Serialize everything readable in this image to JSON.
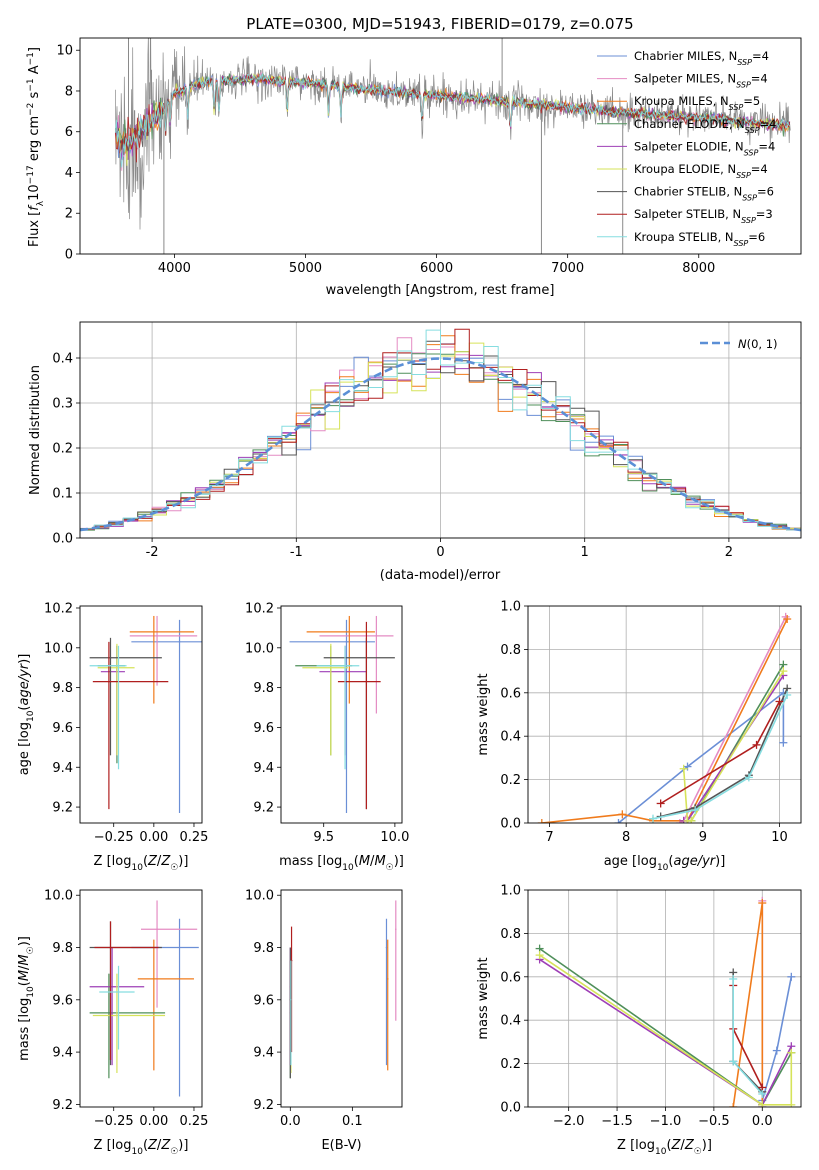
{
  "figure": {
    "title": "PLATE=0300, MJD=51943, FIBERID=0179, z=0.075"
  },
  "colors": {
    "Chabrier MILES": "#6b8fd6",
    "Salpeter MILES": "#e48bc3",
    "Kroupa MILES": "#f07b1c",
    "Chabrier ELODIE": "#4f8f5a",
    "Salpeter ELODIE": "#9e3fb6",
    "Kroupa ELODIE": "#d6e35a",
    "Chabrier STELIB": "#555555",
    "Salpeter STELIB": "#b01f1f",
    "Kroupa STELIB": "#86dde0",
    "data": "#8a8a8a",
    "normal": "#5b8fd6"
  },
  "chart_data": [
    {
      "id": "spectrum",
      "type": "line",
      "title": "PLATE=0300, MJD=51943, FIBERID=0179, z=0.075",
      "xlabel": "wavelength [Angstrom, rest frame]",
      "ylabel": "Flux [f_λ 10^-17 erg cm^-2 s^-1 A^-1]",
      "xlim": [
        3280,
        8780
      ],
      "ylim": [
        0,
        10.6
      ],
      "xticks": [
        4000,
        5000,
        6000,
        7000,
        8000
      ],
      "yticks": [
        0,
        2,
        4,
        6,
        8,
        10
      ],
      "grid": false,
      "legend_position": "upper right",
      "legend": [
        {
          "prefix": "Chabrier MILES, N",
          "sub": "SSP",
          "suffix": "=4",
          "series": "Chabrier MILES"
        },
        {
          "prefix": "Salpeter MILES, N",
          "sub": "SSP",
          "suffix": "=4",
          "series": "Salpeter MILES"
        },
        {
          "prefix": "Kroupa MILES, N",
          "sub": "SSP",
          "suffix": "=5",
          "series": "Kroupa MILES"
        },
        {
          "prefix": "Chabrier ELODIE, N",
          "sub": "SSP",
          "suffix": "=4",
          "series": "Chabrier ELODIE"
        },
        {
          "prefix": "Salpeter ELODIE, N",
          "sub": "SSP",
          "suffix": "=4",
          "series": "Salpeter ELODIE"
        },
        {
          "prefix": "Kroupa ELODIE, N",
          "sub": "SSP",
          "suffix": "=4",
          "series": "Kroupa ELODIE"
        },
        {
          "prefix": "Chabrier STELIB, N",
          "sub": "SSP",
          "suffix": "=6",
          "series": "Chabrier STELIB"
        },
        {
          "prefix": "Salpeter STELIB, N",
          "sub": "SSP",
          "suffix": "=3",
          "series": "Salpeter STELIB"
        },
        {
          "prefix": "Kroupa STELIB, N",
          "sub": "SSP",
          "suffix": "=6",
          "series": "Kroupa STELIB"
        }
      ],
      "continuum": {
        "x": [
          3550,
          3600,
          3700,
          3800,
          3900,
          4000,
          4200,
          4400,
          4600,
          4800,
          5000,
          5300,
          5600,
          6000,
          6500,
          7000,
          7500,
          8000,
          8500,
          8750
        ],
        "y": [
          6.0,
          5.3,
          5.6,
          6.4,
          7.1,
          7.9,
          8.4,
          8.5,
          8.6,
          8.5,
          8.4,
          8.2,
          8.0,
          7.8,
          7.5,
          7.2,
          6.9,
          6.7,
          6.4,
          6.3
        ]
      },
      "absorption_lines": [
        3934,
        3969,
        4102,
        4304,
        4341,
        4861,
        5175,
        5270,
        5890,
        6563
      ],
      "data_range": [
        3550,
        8700
      ]
    },
    {
      "id": "residuals",
      "type": "histogram",
      "xlabel": "(data-model)/error",
      "ylabel": "Normed distribution",
      "xlim": [
        -2.5,
        2.5
      ],
      "ylim": [
        0,
        0.48
      ],
      "xticks": [
        -2,
        -1,
        0,
        1,
        2
      ],
      "yticks": [
        0.0,
        0.1,
        0.2,
        0.3,
        0.4
      ],
      "grid": true,
      "legend_position": "upper right",
      "normal_label": "N(0,1)",
      "bin_width": 0.1
    },
    {
      "id": "age_vs_Z",
      "type": "errorbar",
      "xlabel": "Z [log10(Z/Z☉)]",
      "ylabel": "age [log10(age/yr)]",
      "xlim": [
        -0.46,
        0.3
      ],
      "ylim": [
        9.12,
        10.21
      ],
      "xticks": [
        -0.25,
        0.0,
        0.25
      ],
      "xtick_labels": [
        "−0.25",
        "0.00",
        "0.25"
      ],
      "yticks": [
        9.2,
        9.4,
        9.6,
        9.8,
        10.0,
        10.2
      ],
      "points": [
        {
          "series": "Chabrier MILES",
          "x": 0.16,
          "xerr": [
            0.3,
            0.15
          ],
          "y": 10.03,
          "yerr": [
            0.86,
            0.11
          ]
        },
        {
          "series": "Salpeter MILES",
          "x": 0.02,
          "xerr": [
            0.17,
            0.25
          ],
          "y": 10.06,
          "yerr": [
            0.25,
            0.1
          ]
        },
        {
          "series": "Kroupa MILES",
          "x": 0.0,
          "xerr": [
            0.15,
            0.25
          ],
          "y": 10.08,
          "yerr": [
            0.36,
            0.08
          ]
        },
        {
          "series": "Chabrier ELODIE",
          "x": -0.23,
          "xerr": [
            0.12,
            0.05
          ],
          "y": 9.91,
          "yerr": [
            0.49,
            0.1
          ]
        },
        {
          "series": "Salpeter ELODIE",
          "x": -0.23,
          "xerr": [
            0.1,
            0.05
          ],
          "y": 9.88,
          "yerr": [
            0.42,
            0.13
          ]
        },
        {
          "series": "Kroupa ELODIE",
          "x": -0.23,
          "xerr": [
            0.12,
            0.11
          ],
          "y": 9.9,
          "yerr": [
            0.44,
            0.12
          ]
        },
        {
          "series": "Chabrier STELIB",
          "x": -0.27,
          "xerr": [
            0.13,
            0.32
          ],
          "y": 9.95,
          "yerr": [
            0.49,
            0.1
          ]
        },
        {
          "series": "Salpeter STELIB",
          "x": -0.28,
          "xerr": [
            0.1,
            0.37
          ],
          "y": 9.83,
          "yerr": [
            0.64,
            0.2
          ]
        },
        {
          "series": "Kroupa STELIB",
          "x": -0.22,
          "xerr": [
            0.18,
            0.05
          ],
          "y": 9.91,
          "yerr": [
            0.52,
            0.1
          ]
        }
      ]
    },
    {
      "id": "age_vs_mass",
      "type": "errorbar",
      "xlabel": "mass [log10(M/M☉)]",
      "ylabel": "",
      "xlim": [
        9.2,
        10.05
      ],
      "ylim": [
        9.12,
        10.21
      ],
      "xticks": [
        9.5,
        10.0
      ],
      "xtick_labels": [
        "9.5",
        "10.0"
      ],
      "yticks": [
        9.2,
        9.4,
        9.6,
        9.8,
        10.0,
        10.2
      ],
      "points": [
        {
          "series": "Chabrier MILES",
          "x": 9.66,
          "xerr": [
            0.4,
            0.2
          ],
          "y": 10.03,
          "yerr": [
            0.86,
            0.11
          ]
        },
        {
          "series": "Salpeter MILES",
          "x": 9.87,
          "xerr": [
            0.4,
            0.12
          ],
          "y": 10.06,
          "yerr": [
            0.39,
            0.1
          ]
        },
        {
          "series": "Kroupa MILES",
          "x": 9.68,
          "xerr": [
            0.3,
            0.18
          ],
          "y": 10.08,
          "yerr": [
            0.36,
            0.08
          ]
        },
        {
          "series": "Chabrier ELODIE",
          "x": 9.55,
          "xerr": [
            0.25,
            0.15
          ],
          "y": 9.91,
          "yerr": [
            0.45,
            0.1
          ]
        },
        {
          "series": "Salpeter ELODIE",
          "x": 9.65,
          "xerr": [
            0.18,
            0.15
          ],
          "y": 9.88,
          "yerr": [
            0.42,
            0.13
          ]
        },
        {
          "series": "Kroupa ELODIE",
          "x": 9.55,
          "xerr": [
            0.2,
            0.12
          ],
          "y": 9.9,
          "yerr": [
            0.44,
            0.12
          ]
        },
        {
          "series": "Chabrier STELIB",
          "x": 9.8,
          "xerr": [
            0.3,
            0.2
          ],
          "y": 9.95,
          "yerr": [
            0.76,
            0.1
          ]
        },
        {
          "series": "Salpeter STELIB",
          "x": 9.8,
          "xerr": [
            0.2,
            0.1
          ],
          "y": 9.83,
          "yerr": [
            0.64,
            0.3
          ]
        },
        {
          "series": "Kroupa STELIB",
          "x": 9.65,
          "xerr": [
            0.2,
            0.1
          ],
          "y": 9.91,
          "yerr": [
            0.52,
            0.1
          ]
        }
      ]
    },
    {
      "id": "weight_vs_age",
      "type": "line",
      "xlabel": "age [log10(age/yr)]",
      "ylabel": "mass weight",
      "xlim": [
        6.72,
        10.28
      ],
      "ylim": [
        0,
        1.0
      ],
      "xticks": [
        7,
        8,
        9,
        10
      ],
      "yticks": [
        0.0,
        0.2,
        0.4,
        0.6,
        0.8,
        1.0
      ],
      "grid": true,
      "series": [
        {
          "name": "Chabrier MILES",
          "x": [
            7.9,
            8.8,
            10.05,
            10.05
          ],
          "y": [
            0.0,
            0.26,
            0.6,
            0.37
          ]
        },
        {
          "name": "Salpeter MILES",
          "x": [
            8.7,
            8.75,
            10.08
          ],
          "y": [
            0.0,
            0.01,
            0.95
          ]
        },
        {
          "name": "Kroupa MILES",
          "x": [
            6.9,
            7.95,
            8.35,
            8.8,
            10.1
          ],
          "y": [
            0.0,
            0.04,
            0.01,
            0.01,
            0.94
          ]
        },
        {
          "name": "Chabrier ELODIE",
          "x": [
            8.8,
            8.85,
            10.05
          ],
          "y": [
            0.01,
            0.01,
            0.73
          ]
        },
        {
          "name": "Salpeter ELODIE",
          "x": [
            8.75,
            8.8,
            10.05
          ],
          "y": [
            0.01,
            0.01,
            0.68
          ]
        },
        {
          "name": "Kroupa ELODIE",
          "x": [
            8.75,
            8.8,
            8.85,
            10.05
          ],
          "y": [
            0.25,
            0.01,
            0.01,
            0.7
          ]
        },
        {
          "name": "Chabrier STELIB",
          "x": [
            8.45,
            8.9,
            9.6,
            10.1
          ],
          "y": [
            0.03,
            0.07,
            0.22,
            0.62
          ]
        },
        {
          "name": "Salpeter STELIB",
          "x": [
            8.45,
            9.7,
            10.0
          ],
          "y": [
            0.09,
            0.36,
            0.56
          ]
        },
        {
          "name": "Kroupa STELIB",
          "x": [
            8.35,
            8.9,
            9.6,
            10.1
          ],
          "y": [
            0.02,
            0.06,
            0.21,
            0.59
          ]
        }
      ]
    },
    {
      "id": "mass_vs_Z",
      "type": "errorbar",
      "xlabel": "Z [log10(Z/Z☉)]",
      "ylabel": "mass [log10(M/M☉)]",
      "xlim": [
        -0.46,
        0.3
      ],
      "ylim": [
        9.19,
        10.02
      ],
      "xticks": [
        -0.25,
        0.0,
        0.25
      ],
      "xtick_labels": [
        "−0.25",
        "0.00",
        "0.25"
      ],
      "yticks": [
        9.2,
        9.4,
        9.6,
        9.8,
        10.0
      ],
      "points": [
        {
          "series": "Chabrier MILES",
          "x": 0.16,
          "xerr": [
            0.3,
            0.12
          ],
          "y": 9.8,
          "yerr": [
            0.57,
            0.11
          ]
        },
        {
          "series": "Salpeter MILES",
          "x": 0.02,
          "xerr": [
            0.1,
            0.25
          ],
          "y": 9.87,
          "yerr": [
            0.3,
            0.11
          ]
        },
        {
          "series": "Kroupa MILES",
          "x": 0.0,
          "xerr": [
            0.1,
            0.25
          ],
          "y": 9.68,
          "yerr": [
            0.35,
            0.15
          ]
        },
        {
          "series": "Chabrier ELODIE",
          "x": -0.28,
          "xerr": [
            0.12,
            0.35
          ],
          "y": 9.55,
          "yerr": [
            0.25,
            0.15
          ]
        },
        {
          "series": "Salpeter ELODIE",
          "x": -0.26,
          "xerr": [
            0.14,
            0.2
          ],
          "y": 9.65,
          "yerr": [
            0.3,
            0.15
          ]
        },
        {
          "series": "Kroupa ELODIE",
          "x": -0.23,
          "xerr": [
            0.15,
            0.3
          ],
          "y": 9.54,
          "yerr": [
            0.22,
            0.16
          ]
        },
        {
          "series": "Chabrier STELIB",
          "x": -0.27,
          "xerr": [
            0.13,
            0.32
          ],
          "y": 9.8,
          "yerr": [
            0.45,
            0.1
          ]
        },
        {
          "series": "Salpeter STELIB",
          "x": -0.27,
          "xerr": [
            0.1,
            0.3
          ],
          "y": 9.8,
          "yerr": [
            0.43,
            0.1
          ]
        },
        {
          "series": "Kroupa STELIB",
          "x": -0.22,
          "xerr": [
            0.12,
            0.1
          ],
          "y": 9.63,
          "yerr": [
            0.22,
            0.1
          ]
        }
      ]
    },
    {
      "id": "mass_vs_ebv",
      "type": "errorbar",
      "xlabel": "E(B-V)",
      "ylabel": "",
      "xlim": [
        -0.015,
        0.18
      ],
      "ylim": [
        9.19,
        10.02
      ],
      "xticks": [
        0.0,
        0.1
      ],
      "xtick_labels": [
        "0.0",
        "0.1"
      ],
      "yticks": [
        9.2,
        9.4,
        9.6,
        9.8,
        10.0
      ],
      "points": [
        {
          "series": "Chabrier MILES",
          "x": 0.155,
          "y": 9.8,
          "yerr": [
            0.45,
            0.11
          ]
        },
        {
          "series": "Salpeter MILES",
          "x": 0.17,
          "y": 9.87,
          "yerr": [
            0.35,
            0.11
          ]
        },
        {
          "series": "Kroupa MILES",
          "x": 0.157,
          "y": 9.68,
          "yerr": [
            0.35,
            0.15
          ]
        },
        {
          "series": "Chabrier ELODIE",
          "x": 0.0,
          "y": 9.55,
          "yerr": [
            0.25,
            0.2
          ]
        },
        {
          "series": "Salpeter ELODIE",
          "x": 0.0,
          "y": 9.65,
          "yerr": [
            0.3,
            0.15
          ]
        },
        {
          "series": "Kroupa ELODIE",
          "x": 0.001,
          "y": 9.54,
          "yerr": [
            0.22,
            0.16
          ]
        },
        {
          "series": "Chabrier STELIB",
          "x": 0.0,
          "y": 9.6,
          "yerr": [
            0.3,
            0.2
          ]
        },
        {
          "series": "Salpeter STELIB",
          "x": 0.002,
          "y": 9.75,
          "yerr": [
            0.35,
            0.13
          ]
        },
        {
          "series": "Kroupa STELIB",
          "x": 0.001,
          "y": 9.6,
          "yerr": [
            0.25,
            0.15
          ]
        }
      ]
    },
    {
      "id": "weight_vs_Z",
      "type": "line",
      "xlabel": "Z [log10(Z/Z☉)]",
      "ylabel": "mass weight",
      "xlim": [
        -2.42,
        0.4
      ],
      "ylim": [
        0,
        1.0
      ],
      "xticks": [
        -2.0,
        -1.5,
        -1.0,
        -0.5,
        0.0
      ],
      "xtick_labels": [
        "−2.0",
        "−1.5",
        "−1.0",
        "−0.5",
        "0.0"
      ],
      "yticks": [
        0.0,
        0.2,
        0.4,
        0.6,
        0.8,
        1.0
      ],
      "grid": true,
      "series": [
        {
          "name": "Chabrier MILES",
          "x": [
            0.0,
            0.0,
            0.15,
            0.3
          ],
          "y": [
            0.0,
            0.03,
            0.26,
            0.6
          ]
        },
        {
          "name": "Salpeter MILES",
          "x": [
            0.0,
            0.0
          ],
          "y": [
            0.0,
            0.95
          ]
        },
        {
          "name": "Kroupa MILES",
          "x": [
            -0.3,
            0.0,
            0.0
          ],
          "y": [
            0.0,
            0.94,
            0.01
          ]
        },
        {
          "name": "Chabrier ELODIE",
          "x": [
            -2.3,
            0.0,
            0.3
          ],
          "y": [
            0.73,
            0.01,
            0.25
          ]
        },
        {
          "name": "Salpeter ELODIE",
          "x": [
            -2.3,
            0.0,
            0.3
          ],
          "y": [
            0.68,
            0.01,
            0.28
          ]
        },
        {
          "name": "Kroupa ELODIE",
          "x": [
            -2.3,
            0.0,
            0.3,
            0.3
          ],
          "y": [
            0.7,
            0.01,
            0.01,
            0.25
          ]
        },
        {
          "name": "Chabrier STELIB",
          "x": [
            -0.3,
            -0.3,
            0.0
          ],
          "y": [
            0.62,
            0.21,
            0.07
          ]
        },
        {
          "name": "Salpeter STELIB",
          "x": [
            -0.3,
            -0.3,
            0.0
          ],
          "y": [
            0.56,
            0.36,
            0.09
          ]
        },
        {
          "name": "Kroupa STELIB",
          "x": [
            -0.3,
            -0.3,
            0.0
          ],
          "y": [
            0.59,
            0.21,
            0.06
          ]
        }
      ]
    }
  ]
}
